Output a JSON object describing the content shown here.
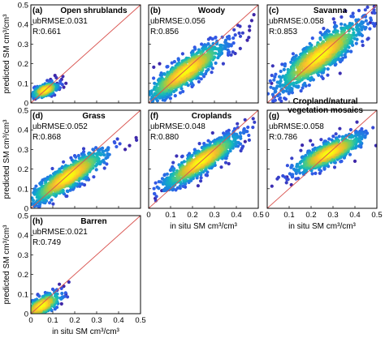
{
  "chart_data": [
    {
      "type": "scatter",
      "panel": "a",
      "letter": "(a)",
      "title": "Open shrublands",
      "ubrmse": "ubRMSE:0.031",
      "r": "R:0.661",
      "xlabel": "",
      "ylabel": "predicted SM cm³/cm³",
      "xlim": [
        0,
        0.5
      ],
      "ylim": [
        0,
        0.5
      ],
      "xticks": [],
      "yticks": [
        "0",
        "0.1",
        "0.2",
        "0.3",
        "0.4",
        "0.5"
      ],
      "one_to_one_line": true,
      "line_color": "#d9534f",
      "cloud": {
        "cx": 0.065,
        "cy": 0.065,
        "sx": 0.03,
        "sy": 0.02,
        "rho": 0.55,
        "n": 220
      },
      "outliers": [
        [
          0.12,
          0.1
        ],
        [
          0.14,
          0.12
        ],
        [
          0.11,
          0.14
        ],
        [
          0.16,
          0.1
        ],
        [
          0.13,
          0.07
        ],
        [
          0.02,
          0.02
        ],
        [
          0.09,
          0.12
        ],
        [
          0.15,
          0.08
        ]
      ]
    },
    {
      "type": "scatter",
      "panel": "b",
      "letter": "(b)",
      "title": "Woody",
      "ubrmse": "ubRMSE:0.056",
      "r": "R:0.856",
      "xlabel": "",
      "ylabel": "",
      "xlim": [
        0,
        0.5
      ],
      "ylim": [
        0,
        0.5
      ],
      "xticks": [],
      "yticks": [],
      "one_to_one_line": true,
      "line_color": "#d9534f",
      "cloud": {
        "cx": 0.17,
        "cy": 0.16,
        "sx": 0.09,
        "sy": 0.075,
        "rho": 0.86,
        "n": 900
      },
      "outliers": [
        [
          0.46,
          0.37
        ],
        [
          0.48,
          0.45
        ],
        [
          0.45,
          0.32
        ],
        [
          0.02,
          0.02
        ],
        [
          0.05,
          0.2
        ],
        [
          0.47,
          0.42
        ]
      ]
    },
    {
      "type": "scatter",
      "panel": "c",
      "letter": "(c)",
      "title": "Savanna",
      "ubrmse": "ubRMSE:0.058",
      "r": "R:0.853",
      "xlabel": "",
      "ylabel": "",
      "xlim": [
        0,
        0.5
      ],
      "ylim": [
        0,
        0.5
      ],
      "xticks": [],
      "yticks": [],
      "one_to_one_line": true,
      "line_color": "#d9534f",
      "cloud": {
        "cx": 0.24,
        "cy": 0.24,
        "sx": 0.1,
        "sy": 0.09,
        "rho": 0.85,
        "n": 1000
      },
      "outliers": [
        [
          0.48,
          0.46
        ],
        [
          0.03,
          0.03
        ],
        [
          0.47,
          0.41
        ],
        [
          0.02,
          0.1
        ]
      ]
    },
    {
      "type": "scatter",
      "panel": "d",
      "letter": "(d)",
      "title": "Grass",
      "ubrmse": "ubRMSE:0.052",
      "r": "R:0.868",
      "xlabel": "",
      "ylabel": "predicted SM cm³/cm³",
      "xlim": [
        0,
        0.5
      ],
      "ylim": [
        0,
        0.5
      ],
      "xticks": [],
      "yticks": [
        "0",
        "0.1",
        "0.2",
        "0.3",
        "0.4",
        "0.5"
      ],
      "one_to_one_line": true,
      "line_color": "#d9534f",
      "cloud": {
        "cx": 0.17,
        "cy": 0.16,
        "sx": 0.09,
        "sy": 0.07,
        "rho": 0.87,
        "n": 900
      },
      "outliers": [
        [
          0.45,
          0.32
        ],
        [
          0.48,
          0.36
        ],
        [
          0.43,
          0.3
        ],
        [
          0.03,
          0.03
        ]
      ]
    },
    {
      "type": "scatter",
      "panel": "f",
      "letter": "(f)",
      "title": "Croplands",
      "ubrmse": "ubRMSE:0.048",
      "r": "R:0.880",
      "xlabel": "in situ SM cm³/cm³",
      "ylabel": "",
      "xlim": [
        0,
        0.5
      ],
      "ylim": [
        0,
        0.5
      ],
      "xticks": [
        "0",
        "0.1",
        "0.2",
        "0.3",
        "0.4",
        "0.5"
      ],
      "yticks": [],
      "one_to_one_line": true,
      "line_color": "#d9534f",
      "cloud": {
        "cx": 0.24,
        "cy": 0.24,
        "sx": 0.09,
        "sy": 0.07,
        "rho": 0.88,
        "n": 900
      },
      "outliers": [
        [
          0.03,
          0.05
        ],
        [
          0.44,
          0.34
        ],
        [
          0.06,
          0.09
        ]
      ]
    },
    {
      "type": "scatter",
      "panel": "g",
      "letter": "(g)",
      "title_lines": [
        "Cropland/natural",
        "vegetation mosaics"
      ],
      "ubrmse": "ubRMSE:0.058",
      "r": "R:0.786",
      "xlabel": "in situ SM cm³/cm³",
      "ylabel": "",
      "xlim": [
        0,
        0.5
      ],
      "ylim": [
        0,
        0.5
      ],
      "xticks": [
        "0",
        "0.1",
        "0.2",
        "0.3",
        "0.4",
        "0.5"
      ],
      "yticks": [],
      "one_to_one_line": true,
      "line_color": "#d9534f",
      "cloud": {
        "cx": 0.28,
        "cy": 0.28,
        "sx": 0.08,
        "sy": 0.05,
        "rho": 0.8,
        "n": 700
      },
      "outliers": [
        [
          0.11,
          0.12
        ],
        [
          0.09,
          0.16
        ],
        [
          0.42,
          0.37
        ],
        [
          0.4,
          0.24
        ]
      ]
    },
    {
      "type": "scatter",
      "panel": "h",
      "letter": "(h)",
      "title": "Barren",
      "ubrmse": "ubRMSE:0.021",
      "r": "R:0.749",
      "xlabel": "in situ SM cm³/cm³",
      "ylabel": "predicted SM cm³/cm³",
      "xlim": [
        0,
        0.5
      ],
      "ylim": [
        0,
        0.5
      ],
      "xticks": [
        "0",
        "0.1",
        "0.2",
        "0.3",
        "0.4",
        "0.5"
      ],
      "yticks": [
        "0",
        "0.1",
        "0.2",
        "0.3",
        "0.4",
        "0.5"
      ],
      "one_to_one_line": true,
      "line_color": "#d9534f",
      "cloud": {
        "cx": 0.05,
        "cy": 0.04,
        "sx": 0.045,
        "sy": 0.035,
        "rho": 0.7,
        "n": 300
      },
      "outliers": [
        [
          0.15,
          0.14
        ],
        [
          0.16,
          0.1
        ],
        [
          0.13,
          0.15
        ],
        [
          0.12,
          0.12
        ],
        [
          0.14,
          0.05
        ]
      ]
    }
  ]
}
